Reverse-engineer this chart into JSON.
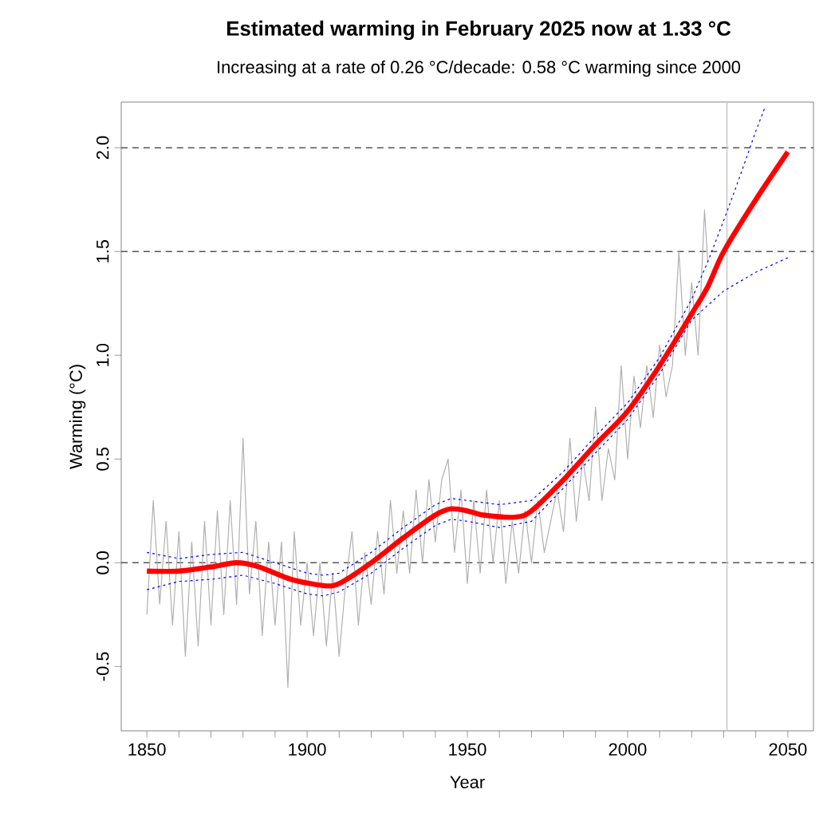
{
  "chart_data": {
    "type": "line",
    "title": "Estimated warming in February 2025 now at 1.33 °C",
    "subtitle": "Increasing at a rate of 0.26 °C/decade: 0.58 °C warming since 2000",
    "xlabel": "Year",
    "ylabel": "Warming (°C)",
    "xlim": [
      1842,
      2058
    ],
    "ylim": [
      -0.81,
      2.22
    ],
    "xticks": [
      1850,
      {
        "value": 1860,
        "label": null
      },
      {
        "value": 1870,
        "label": null
      },
      {
        "value": 1880,
        "label": null
      },
      {
        "value": 1890,
        "label": null
      },
      1900,
      {
        "value": 1910,
        "label": null
      },
      {
        "value": 1920,
        "label": null
      },
      {
        "value": 1930,
        "label": null
      },
      {
        "value": 1940,
        "label": null
      },
      1950,
      {
        "value": 1960,
        "label": null
      },
      {
        "value": 1970,
        "label": null
      },
      {
        "value": 1980,
        "label": null
      },
      {
        "value": 1990,
        "label": null
      },
      2000,
      {
        "value": 2010,
        "label": null
      },
      {
        "value": 2020,
        "label": null
      },
      {
        "value": 2030,
        "label": null
      },
      {
        "value": 2040,
        "label": null
      },
      2050
    ],
    "yticks": [
      -0.5,
      {
        "value": 0,
        "label": "0.0"
      },
      0.5,
      {
        "value": 1,
        "label": "1.0"
      },
      1.5,
      {
        "value": 2,
        "label": "2.0"
      }
    ],
    "grid": false,
    "ref_lines": [
      {
        "axis": "y",
        "value": 0,
        "color": "#555555",
        "line_style": "dashed"
      },
      {
        "axis": "y",
        "value": 1.5,
        "color": "#555555",
        "line_style": "dashed"
      },
      {
        "axis": "y",
        "value": 2,
        "color": "#555555",
        "line_style": "dashed"
      },
      {
        "axis": "x",
        "value": 2031,
        "color": "#cccccc",
        "line_style": "solid"
      }
    ],
    "series": [
      {
        "color": "#b0b0b0",
        "line_style": "solid",
        "x": [
          1850,
          1852,
          1854,
          1856,
          1858,
          1860,
          1862,
          1864,
          1866,
          1868,
          1870,
          1872,
          1874,
          1876,
          1878,
          1880,
          1882,
          1884,
          1886,
          1888,
          1890,
          1892,
          1894,
          1896,
          1898,
          1900,
          1902,
          1904,
          1906,
          1908,
          1910,
          1912,
          1914,
          1916,
          1918,
          1920,
          1922,
          1924,
          1926,
          1928,
          1930,
          1932,
          1934,
          1936,
          1938,
          1940,
          1942,
          1944,
          1946,
          1948,
          1950,
          1952,
          1954,
          1956,
          1958,
          1960,
          1962,
          1964,
          1966,
          1968,
          1970,
          1972,
          1974,
          1976,
          1978,
          1980,
          1982,
          1984,
          1986,
          1988,
          1990,
          1992,
          1994,
          1996,
          1998,
          2000,
          2002,
          2004,
          2006,
          2008,
          2010,
          2012,
          2014,
          2016,
          2018,
          2020,
          2022,
          2024,
          2025
        ],
        "values": [
          -0.25,
          0.3,
          -0.2,
          0.2,
          -0.3,
          0.15,
          -0.45,
          0.1,
          -0.4,
          0.2,
          -0.3,
          0.25,
          -0.25,
          0.3,
          -0.2,
          0.6,
          -0.15,
          0.2,
          -0.35,
          0.1,
          -0.3,
          0.1,
          -0.6,
          0.15,
          -0.3,
          0.0,
          -0.35,
          0.0,
          -0.4,
          -0.05,
          -0.45,
          -0.1,
          0.15,
          -0.3,
          0.05,
          -0.2,
          0.15,
          -0.15,
          0.3,
          -0.05,
          0.25,
          -0.05,
          0.35,
          0.0,
          0.4,
          0.1,
          0.4,
          0.5,
          0.05,
          0.35,
          -0.1,
          0.3,
          -0.05,
          0.35,
          0.0,
          0.3,
          -0.1,
          0.2,
          -0.05,
          0.25,
          0.0,
          0.3,
          0.05,
          0.2,
          0.35,
          0.15,
          0.6,
          0.2,
          0.5,
          0.3,
          0.75,
          0.3,
          0.55,
          0.4,
          0.95,
          0.5,
          0.9,
          0.65,
          0.95,
          0.7,
          1.05,
          0.8,
          0.95,
          1.5,
          1.0,
          1.35,
          1.0,
          1.7,
          1.45
        ]
      },
      {
        "color": "#0000ff",
        "line_style": "dotted",
        "x": [
          1850,
          1860,
          1870,
          1880,
          1890,
          1900,
          1905,
          1910,
          1920,
          1930,
          1940,
          1945,
          1950,
          1960,
          1970,
          1980,
          1990,
          2000,
          2010,
          2020,
          2025,
          2030,
          2035,
          2040,
          2043
        ],
        "values": [
          0.05,
          0.02,
          0.04,
          0.05,
          0.0,
          -0.05,
          -0.06,
          -0.05,
          0.05,
          0.17,
          0.28,
          0.31,
          0.3,
          0.28,
          0.3,
          0.44,
          0.61,
          0.77,
          0.99,
          1.27,
          1.45,
          1.65,
          1.86,
          2.08,
          2.2
        ]
      },
      {
        "color": "#0000ff",
        "line_style": "dotted",
        "x": [
          1850,
          1860,
          1870,
          1880,
          1890,
          1900,
          1905,
          1910,
          1920,
          1930,
          1940,
          1945,
          1950,
          1960,
          1970,
          1980,
          1990,
          2000,
          2010,
          2020,
          2025,
          2030,
          2040,
          2050
        ],
        "values": [
          -0.13,
          -0.09,
          -0.08,
          -0.06,
          -0.1,
          -0.15,
          -0.16,
          -0.14,
          -0.05,
          0.07,
          0.18,
          0.21,
          0.2,
          0.17,
          0.2,
          0.36,
          0.53,
          0.69,
          0.91,
          1.17,
          1.24,
          1.31,
          1.4,
          1.47
        ]
      },
      {
        "color": "#ff0000",
        "line_style": "solid",
        "x": [
          1850,
          1860,
          1870,
          1878,
          1885,
          1895,
          1905,
          1910,
          1920,
          1930,
          1940,
          1945,
          1950,
          1955,
          1965,
          1970,
          1980,
          1990,
          2000,
          2010,
          2020,
          2025,
          2030,
          2040,
          2050
        ],
        "values": [
          -0.04,
          -0.04,
          -0.02,
          0.0,
          -0.02,
          -0.08,
          -0.11,
          -0.1,
          0.0,
          0.12,
          0.23,
          0.26,
          0.25,
          0.23,
          0.22,
          0.25,
          0.4,
          0.57,
          0.73,
          0.95,
          1.2,
          1.33,
          1.5,
          1.75,
          1.98
        ]
      }
    ]
  }
}
